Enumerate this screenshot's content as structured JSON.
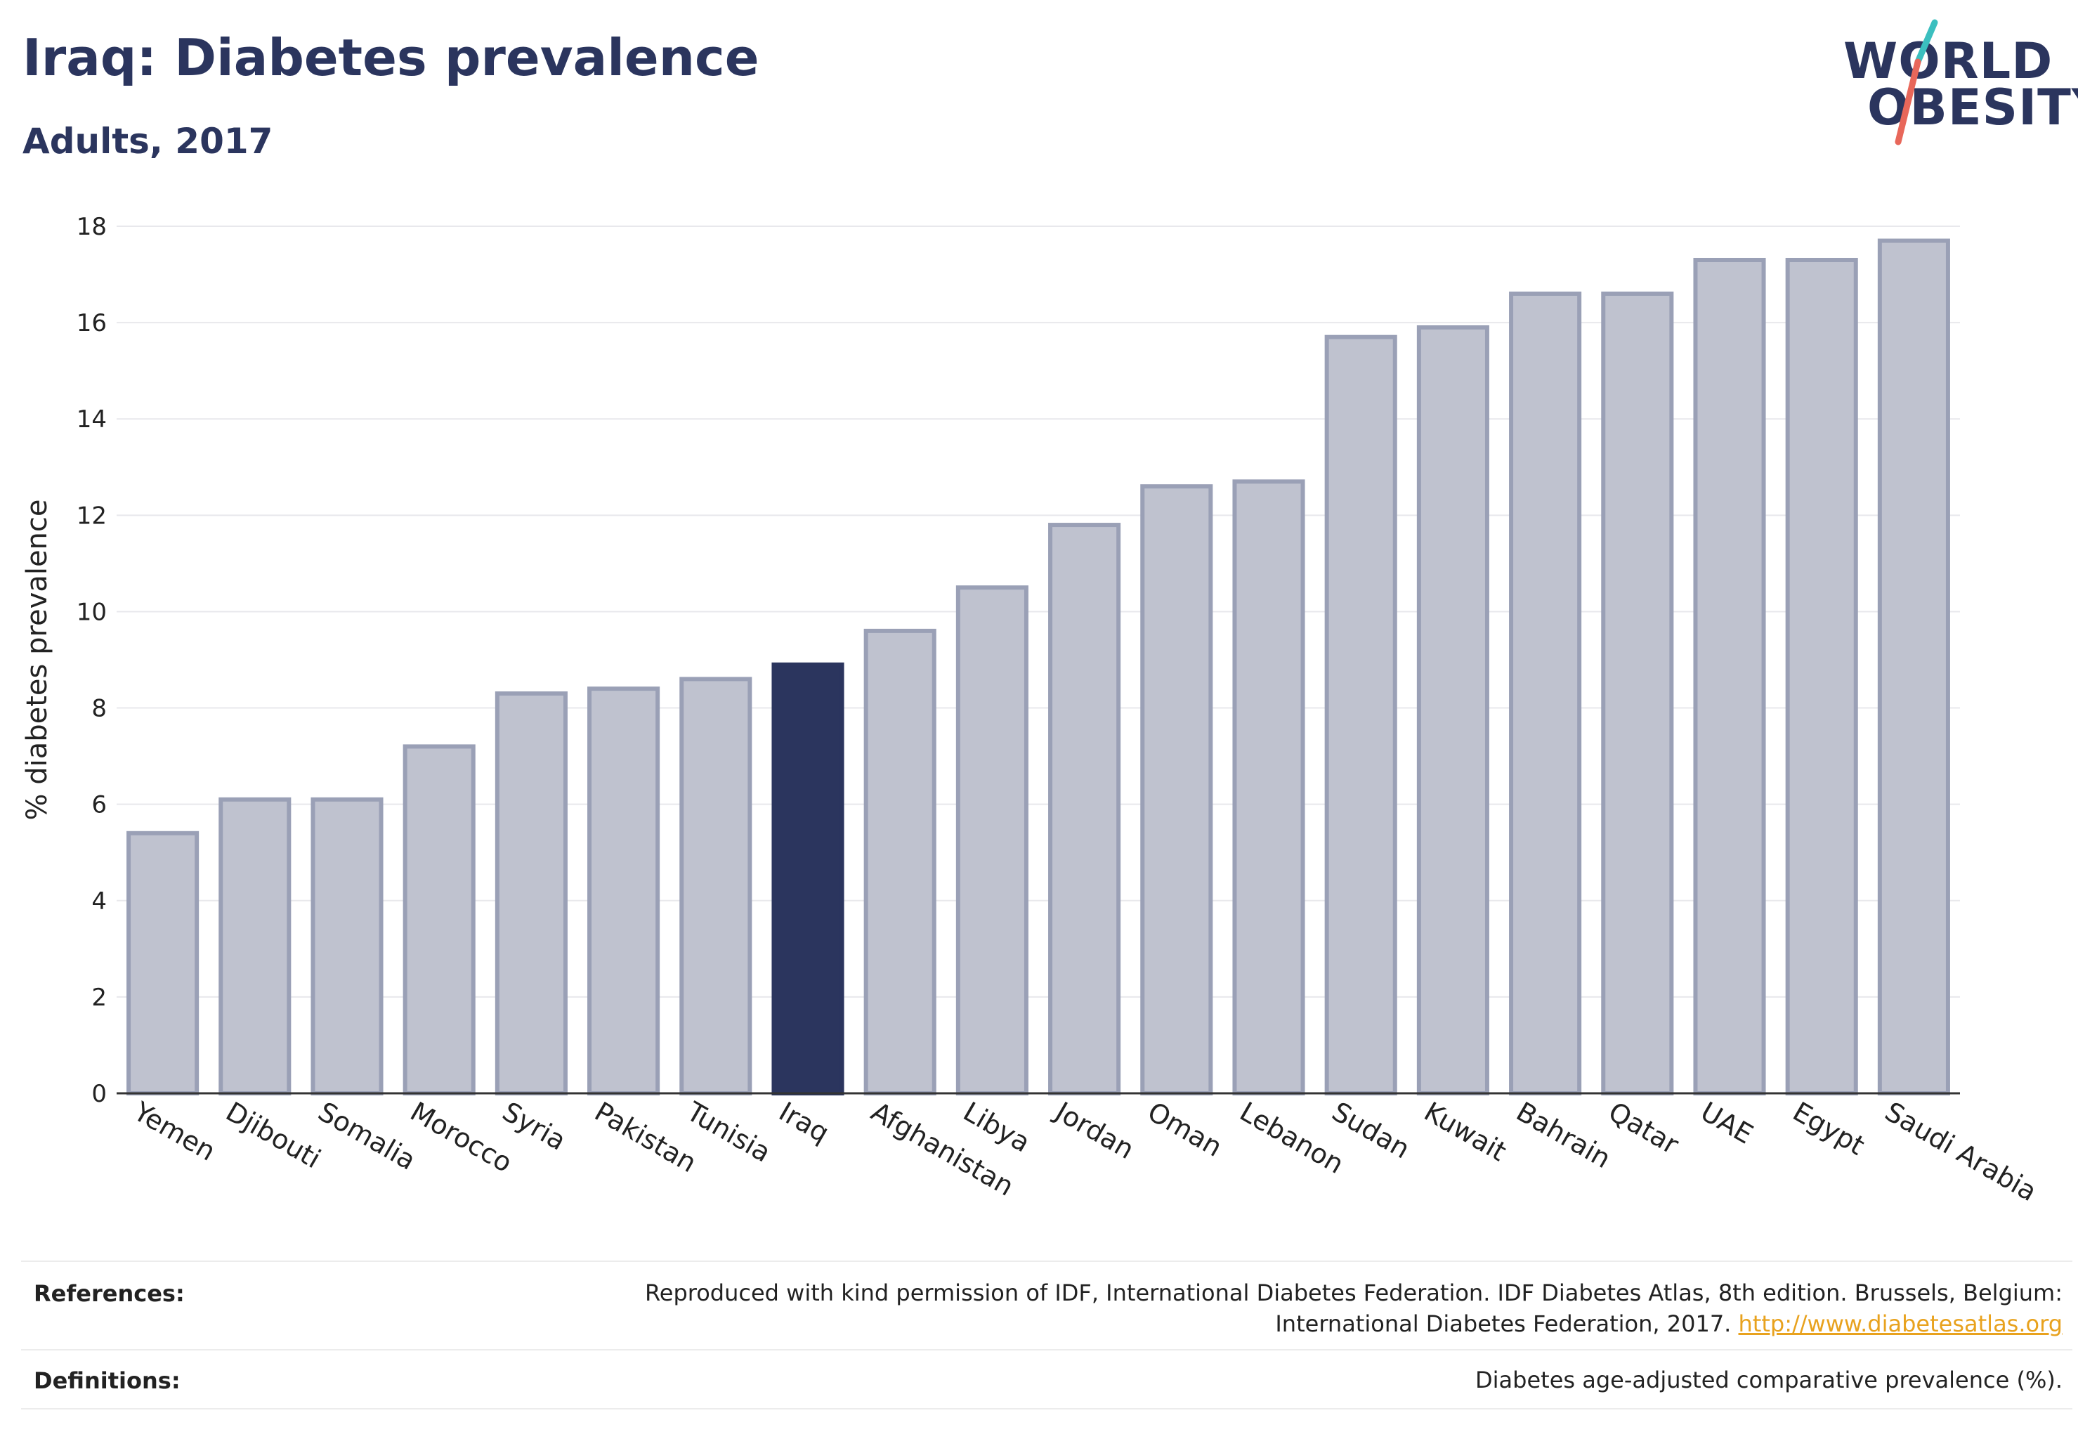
{
  "header": {
    "title": "Iraq: Diabetes prevalence",
    "subtitle": "Adults, 2017"
  },
  "logo": {
    "line1": "WORLD",
    "line2": "OBESITY",
    "accent_top": "#3bbfbf",
    "accent_bottom": "#e8675a"
  },
  "colors": {
    "bar_default": "#bfc2cf",
    "bar_default_stroke": "#9aa0b6",
    "bar_highlight": "#2b355e",
    "grid": "#e8e8ec",
    "axis": "#333333"
  },
  "chart_data": {
    "type": "bar",
    "title": "Iraq: Diabetes prevalence",
    "subtitle": "Adults, 2017",
    "xlabel": "",
    "ylabel": "% diabetes prevalence",
    "ylim": [
      0,
      18
    ],
    "yticks": [
      0,
      2,
      4,
      6,
      8,
      10,
      12,
      14,
      16,
      18
    ],
    "grid": true,
    "highlight": "Iraq",
    "categories": [
      "Yemen",
      "Djibouti",
      "Somalia",
      "Morocco",
      "Syria",
      "Pakistan",
      "Tunisia",
      "Iraq",
      "Afghanistan",
      "Libya",
      "Jordan",
      "Oman",
      "Lebanon",
      "Sudan",
      "Kuwait",
      "Bahrain",
      "Qatar",
      "UAE",
      "Egypt",
      "Saudi Arabia"
    ],
    "values": [
      5.4,
      6.1,
      6.1,
      7.2,
      8.3,
      8.4,
      8.6,
      8.9,
      9.6,
      10.5,
      11.8,
      12.6,
      12.7,
      15.7,
      15.9,
      16.6,
      16.6,
      17.3,
      17.3,
      17.7
    ]
  },
  "footer": {
    "references_label": "References:",
    "references_text_1": "Reproduced with kind permission of IDF, International Diabetes Federation. IDF Diabetes Atlas, 8th edition. Brussels, Belgium:",
    "references_text_2": "International Diabetes Federation, 2017.",
    "references_link": "http://www.diabetesatlas.org",
    "definitions_label": "Definitions:",
    "definitions_text": "Diabetes age-adjusted comparative prevalence (%)."
  }
}
